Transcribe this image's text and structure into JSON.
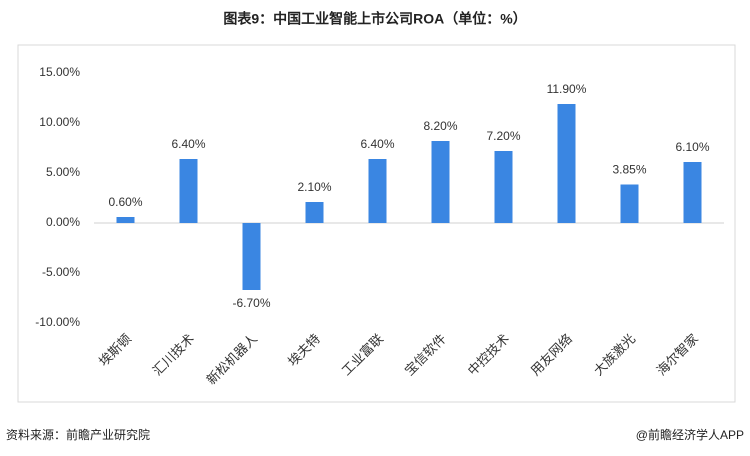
{
  "chart_data": {
    "type": "bar",
    "title": "图表9：中国工业智能上市公司ROA（单位：%）",
    "categories": [
      "埃斯顿",
      "汇川技术",
      "新松机器人",
      "埃夫特",
      "工业富联",
      "宝信软件",
      "中控技术",
      "用友网络",
      "大族激光",
      "海尔智家"
    ],
    "values": [
      0.6,
      6.4,
      -6.7,
      2.1,
      6.4,
      8.2,
      7.2,
      11.9,
      3.85,
      6.1
    ],
    "value_labels": [
      "0.60%",
      "6.40%",
      "-6.70%",
      "2.10%",
      "6.40%",
      "8.20%",
      "7.20%",
      "11.90%",
      "3.85%",
      "6.10%"
    ],
    "color": "#3a86e2",
    "ylim": [
      -10,
      15
    ],
    "yticks": [
      {
        "value": -10,
        "label": "-10.00%"
      },
      {
        "value": -5,
        "label": "-5.00%"
      },
      {
        "value": 0,
        "label": "0.00%"
      },
      {
        "value": 5,
        "label": "5.00%"
      },
      {
        "value": 10,
        "label": "10.00%"
      },
      {
        "value": 15,
        "label": "15.00%"
      }
    ],
    "grid": false,
    "source": "资料来源：前瞻产业研究院",
    "credit": "@前瞻经济学人APP"
  }
}
